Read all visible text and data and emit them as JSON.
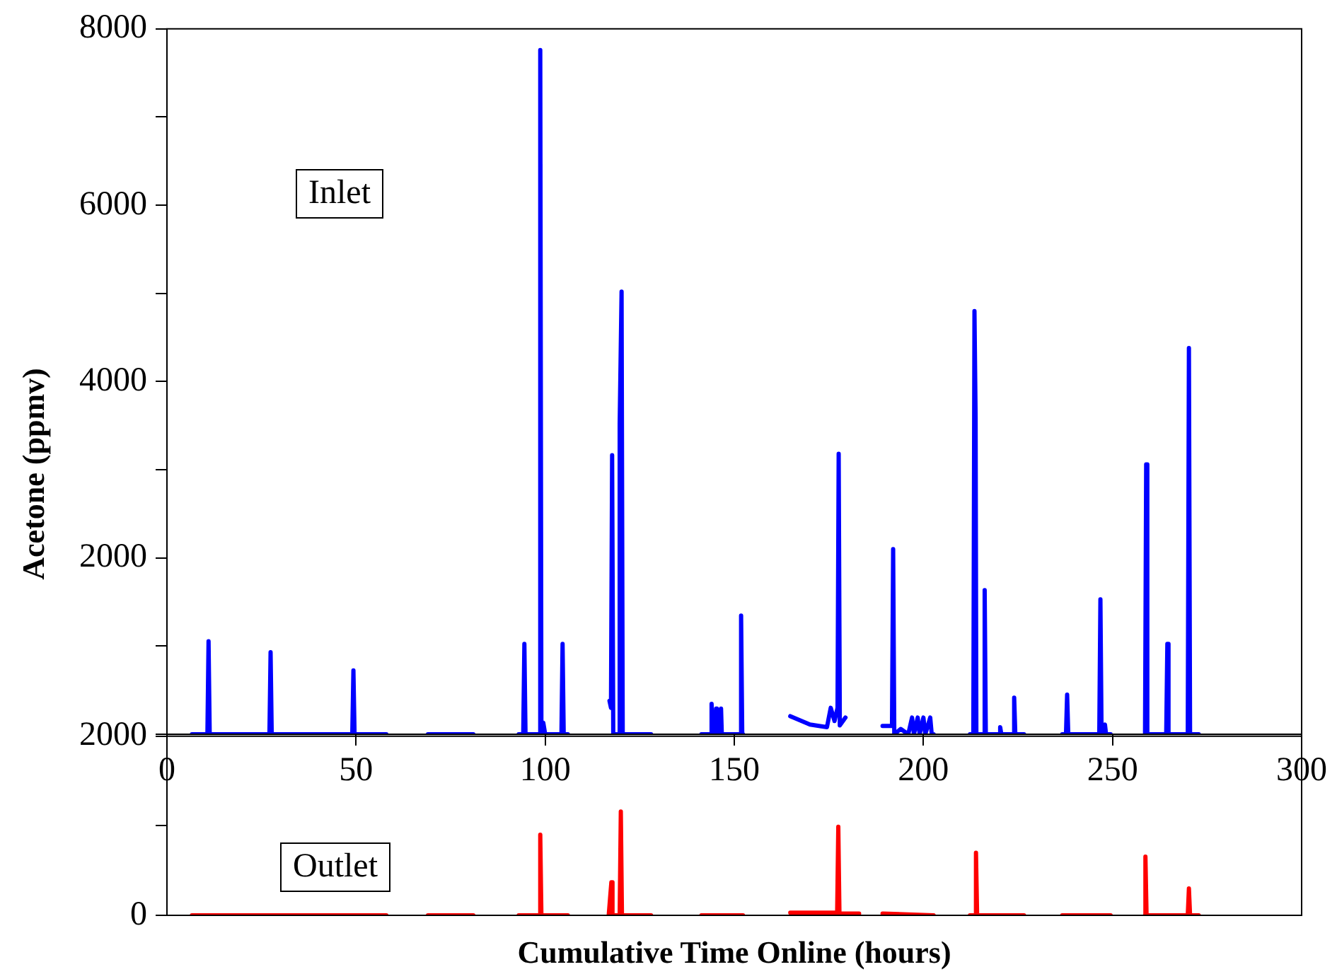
{
  "chart_data": [
    {
      "type": "line",
      "ylabel": "Acetone (ppmv)",
      "annotations": [
        "Inlet"
      ],
      "xlim": [
        0,
        300
      ],
      "xticks": [
        0,
        50,
        100,
        150,
        200,
        250,
        300
      ],
      "ylim": [
        0,
        8000
      ],
      "yticks": [
        {
          "value": 0,
          "label": null
        },
        {
          "value": 1000,
          "label": null
        },
        2000,
        {
          "value": 3000,
          "label": null
        },
        4000,
        {
          "value": 5000,
          "label": null
        },
        6000,
        {
          "value": 7000,
          "label": null
        },
        8000
      ],
      "grid": false,
      "legend": false,
      "marker": "none",
      "line_style": "solid",
      "series": [
        {
          "color": "#0000ff",
          "x": [
            6.6,
            10.7,
            11,
            11.3,
            27.1,
            27.4,
            27.7,
            49,
            49.3,
            49.6,
            58,
            63,
            69,
            81,
            87,
            93,
            94.2,
            94.5,
            94.8,
            98.4,
            98.7,
            99,
            99.5,
            100,
            104.3,
            104.6,
            104.9,
            106,
            111,
            117,
            117.4,
            117.7,
            118,
            119.5,
            119.7,
            120.2,
            120.5,
            128,
            134,
            141.3,
            143.7,
            144,
            144.3,
            145,
            145.2,
            145.4,
            146.3,
            146.5,
            146.7,
            151.5,
            151.8,
            152.1,
            152.3,
            158,
            164.8,
            170,
            174.5,
            175.5,
            176.5,
            177.3,
            177.6,
            177.9,
            179.4,
            184,
            189.2,
            191.7,
            192,
            192.3,
            194,
            196,
            197,
            197.5,
            198.5,
            199,
            200,
            200.5,
            201.8,
            202.2,
            202.7,
            208,
            212.3,
            213.2,
            213.5,
            213.8,
            214,
            215.9,
            216.2,
            216.5,
            220,
            220.3,
            220.6,
            223.7,
            224,
            224.3,
            226.6,
            231,
            236.7,
            237.7,
            238,
            238.3,
            246.5,
            246.8,
            247.1,
            248,
            248.3,
            249.5,
            254,
            258.6,
            258.9,
            259.2,
            264.2,
            264.5,
            264.8,
            269.9,
            270.2,
            270.5,
            272.8
          ],
          "values": [
            0,
            0,
            1055,
            0,
            0,
            930,
            0,
            0,
            725,
            0,
            0,
            null,
            0,
            0,
            null,
            0,
            0,
            1025,
            0,
            0,
            7760,
            0,
            130,
            0,
            0,
            1025,
            0,
            0,
            null,
            380,
            300,
            3165,
            0,
            0,
            3510,
            5020,
            0,
            0,
            null,
            0,
            0,
            345,
            0,
            0,
            290,
            0,
            0,
            290,
            0,
            0,
            1345,
            0,
            0,
            null,
            205,
            110,
            80,
            300,
            150,
            300,
            3180,
            100,
            190,
            null,
            95,
            95,
            2100,
            0,
            60,
            0,
            190,
            0,
            190,
            0,
            190,
            0,
            190,
            0,
            0,
            null,
            0,
            0,
            4800,
            3600,
            0,
            0,
            1635,
            0,
            0,
            80,
            0,
            0,
            415,
            0,
            0,
            null,
            0,
            0,
            450,
            0,
            0,
            1530,
            0,
            110,
            0,
            0,
            null,
            0,
            3060,
            0,
            0,
            1025,
            0,
            0,
            4380,
            0,
            0
          ]
        }
      ]
    },
    {
      "type": "line",
      "xlabel": "Cumulative Time Online (hours)",
      "annotations": [
        "Outlet"
      ],
      "xlim": [
        0,
        300
      ],
      "ylim": [
        0,
        2000
      ],
      "yticks": [
        0,
        {
          "value": 1000,
          "label": null
        },
        2000
      ],
      "tick_labels": "y",
      "grid": false,
      "legend": false,
      "marker": "none",
      "line_style": "solid",
      "series": [
        {
          "color": "#ff0000",
          "x": [
            6.6,
            58,
            63,
            69,
            81,
            87,
            93,
            98.4,
            98.7,
            99,
            106,
            111,
            116.8,
            117.5,
            117.8,
            119.7,
            120,
            120.3,
            128,
            134,
            141.3,
            152.3,
            158,
            164.8,
            177.2,
            177.5,
            177.8,
            183,
            186,
            189.2,
            202.7,
            208,
            212.3,
            213.6,
            213.9,
            214.2,
            226.6,
            231,
            236.7,
            249.5,
            254,
            258.6,
            258.7,
            259,
            269.9,
            270.2,
            270.5,
            272.8
          ],
          "values": [
            0,
            0,
            null,
            0,
            0,
            null,
            0,
            0,
            900,
            0,
            0,
            null,
            0,
            370,
            0,
            0,
            1160,
            0,
            0,
            null,
            0,
            0,
            null,
            30,
            30,
            990,
            20,
            20,
            null,
            20,
            0,
            null,
            0,
            0,
            700,
            0,
            0,
            null,
            0,
            0,
            null,
            0,
            655,
            0,
            0,
            300,
            0,
            0
          ]
        }
      ]
    }
  ]
}
